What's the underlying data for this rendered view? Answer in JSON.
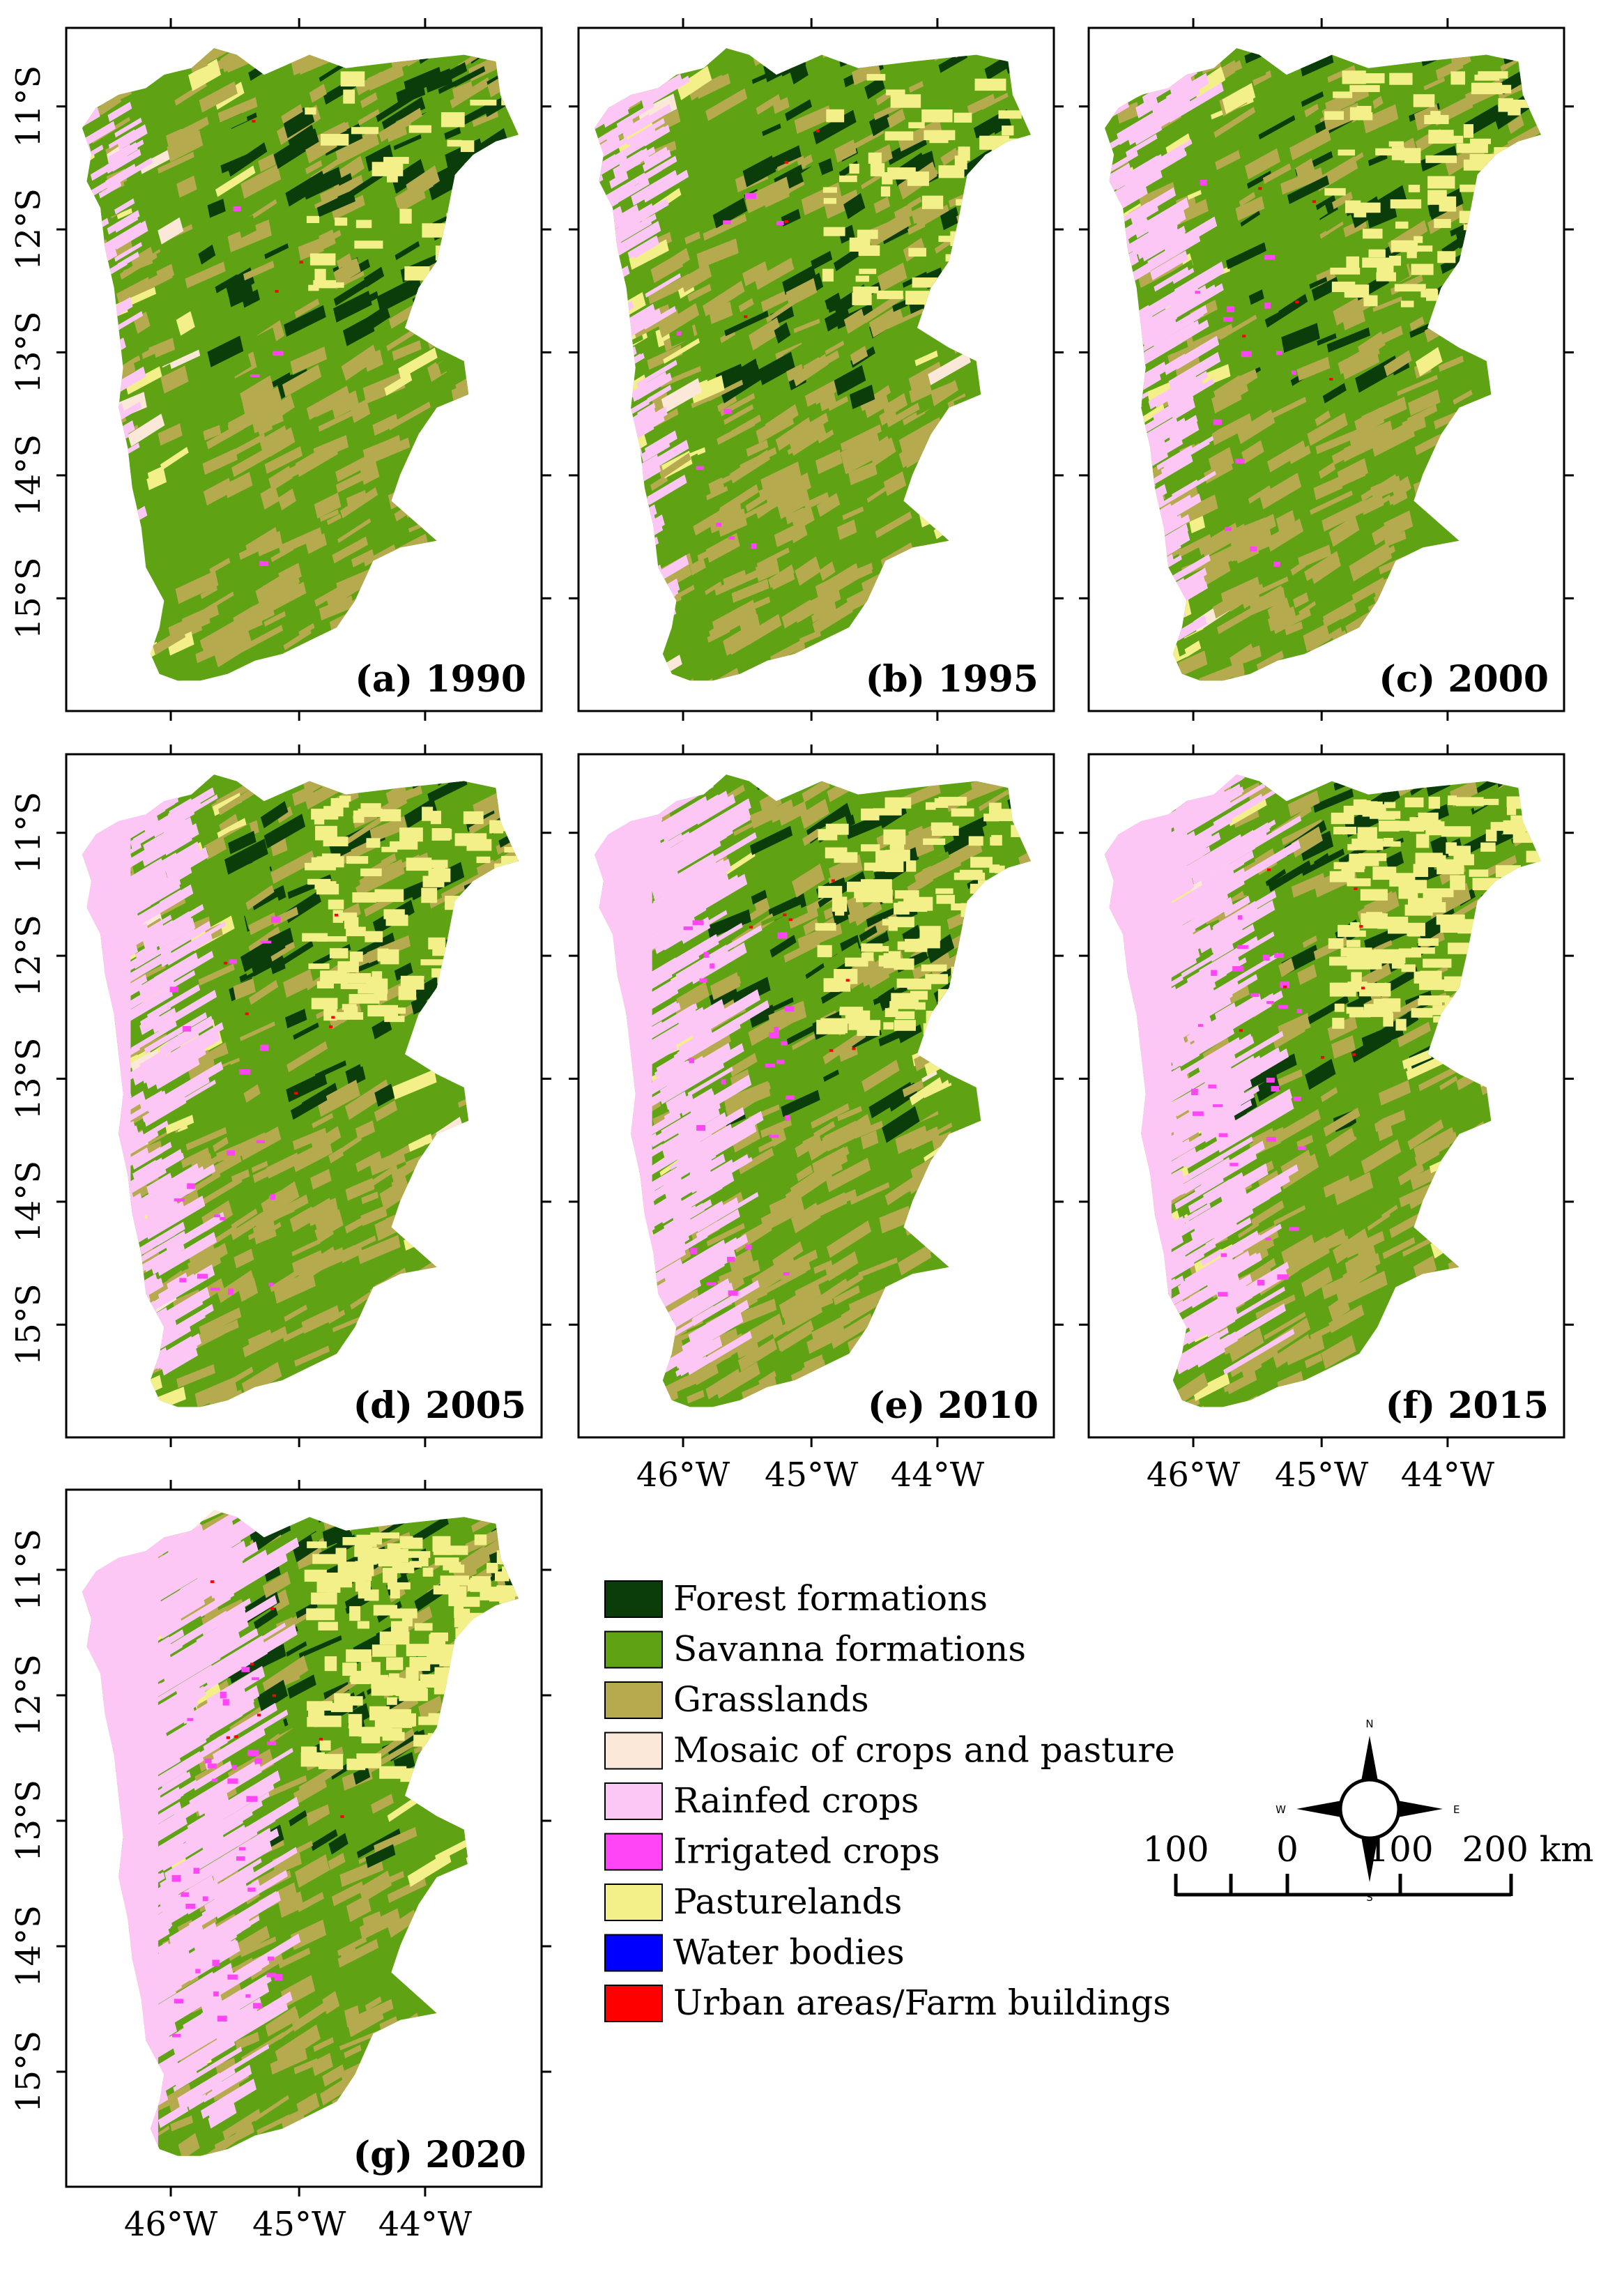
{
  "figure": {
    "panels": [
      {
        "id": "a",
        "label": "(a) 1990"
      },
      {
        "id": "b",
        "label": "(b) 1995"
      },
      {
        "id": "c",
        "label": "(c) 2000"
      },
      {
        "id": "d",
        "label": "(d) 2005"
      },
      {
        "id": "e",
        "label": "(e) 2010"
      },
      {
        "id": "f",
        "label": "(f) 2015"
      },
      {
        "id": "g",
        "label": "(g) 2020"
      }
    ],
    "lat_ticks": [
      "11°S",
      "12°S",
      "13°S",
      "14°S",
      "15°S"
    ],
    "lon_ticks": [
      "46°W",
      "45°W",
      "44°W"
    ],
    "legend": [
      {
        "label": "Forest formations",
        "color": "#0b3d0b"
      },
      {
        "label": "Savanna formations",
        "color": "#5fa314"
      },
      {
        "label": "Grasslands",
        "color": "#b5ab4e"
      },
      {
        "label": "Mosaic of crops and pasture",
        "color": "#fbe8d8"
      },
      {
        "label": "Rainfed crops",
        "color": "#fcc7f5"
      },
      {
        "label": "Irrigated crops",
        "color": "#ff45f5"
      },
      {
        "label": "Pasturelands",
        "color": "#f3f08a"
      },
      {
        "label": "Water bodies",
        "color": "#0000ff"
      },
      {
        "label": "Urban areas/Farm buildings",
        "color": "#ff0000"
      }
    ],
    "compass": {
      "n": "N",
      "s": "S",
      "e": "E",
      "w": "W"
    },
    "scale_bar": {
      "labels": [
        "100",
        "0",
        "100",
        "200 km"
      ]
    }
  }
}
